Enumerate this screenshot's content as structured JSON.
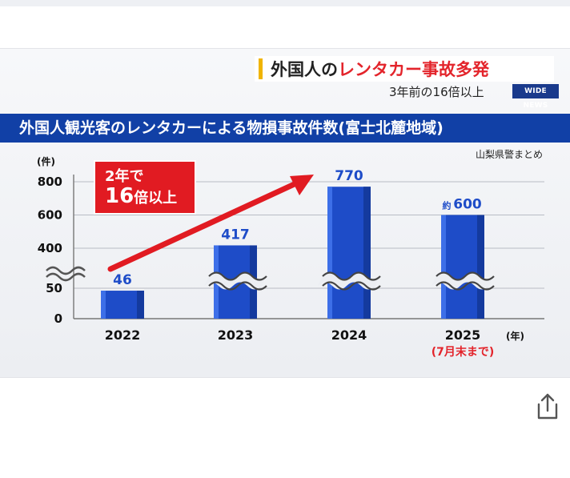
{
  "headline": {
    "prefix": "外国人の",
    "highlight": "レンタカー事故多発"
  },
  "subheadline": "3年前の16倍以上",
  "logo_text": "WIDE NEWS",
  "source_note": "山梨県警まとめ",
  "callout": {
    "line1": "2年で",
    "line2_big": "16",
    "line2_rest": "倍以上"
  },
  "colors": {
    "title_bar": "#1140a6",
    "bar": "#1e4cc8",
    "highlight_red": "#e3242b",
    "accent": "#f0b400"
  },
  "chart_data": {
    "type": "bar",
    "title": "外国人観光客のレンタカーによる物損事故件数(富士北麓地域)",
    "xlabel": "",
    "ylabel": "",
    "x_unit": "(年)",
    "y_unit": "(件)",
    "axis_break": "between 50 and 400",
    "categories": [
      "2022",
      "2023",
      "2024",
      "2025"
    ],
    "values": [
      46,
      417,
      770,
      600
    ],
    "data_labels": [
      "46",
      "417",
      "770",
      "600"
    ],
    "data_label_prefixes": [
      "",
      "",
      "",
      "約"
    ],
    "category_notes": [
      "",
      "",
      "",
      "(7月末まで)"
    ],
    "y_ticks": [
      0,
      50,
      400,
      600,
      800
    ],
    "ylim": [
      0,
      850
    ],
    "grid": true
  }
}
